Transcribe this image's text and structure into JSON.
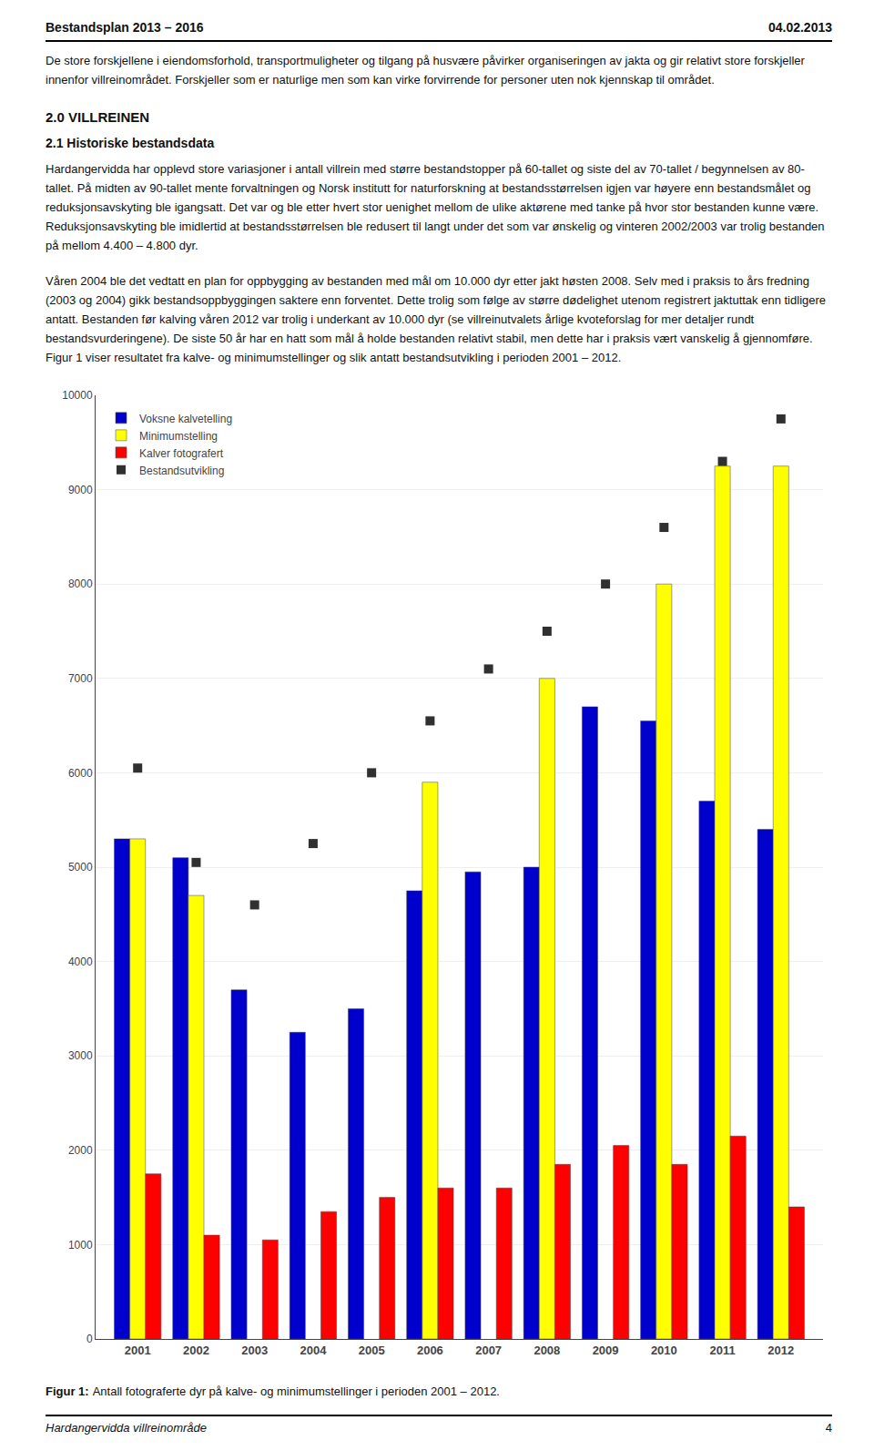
{
  "chart_data": {
    "type": "bar",
    "annotations": [
      "Bestandsplan 2013 – 2016",
      "04.02.2013",
      "De store forskjellene i eiendomsforhold, transportmuligheter og tilgang på husvære påvirker organiseringen av jakta og gir relativt store forskjeller innenfor villreinområdet. Forskjeller som er naturlige men som kan virke forvirrende for personer uten nok kjennskap til området.",
      "2.0 VILLREINEN",
      "2.1 Historiske bestandsdata",
      "Hardangervidda har opplevd store variasjoner i antall villrein med større bestandstopper på 60-tallet og siste del av 70-tallet / begynnelsen av 80-tallet. På midten av 90-tallet mente forvaltningen og Norsk institutt for naturforskning at bestandsstørrelsen igjen var høyere enn bestandsmålet og reduksjonsavskyting ble igangsatt. Det var og ble etter hvert stor uenighet mellom de ulike aktørene med tanke på hvor stor bestanden kunne være. Reduksjonsavskyting ble imidlertid at bestandsstørrelsen ble redusert til langt under det som var ønskelig og vinteren 2002/2003 var trolig bestanden på mellom 4.400 – 4.800 dyr.",
      "Våren 2004 ble det vedtatt en plan for oppbygging av bestanden med mål om 10.000 dyr etter jakt høsten 2008. Selv med i praksis to års fredning (2003 og 2004) gikk bestandsoppbyggingen saktere enn forventet. Dette trolig som følge av større dødelighet utenom registrert jaktuttak enn tidligere antatt. Bestanden før kalving våren 2012 var trolig i underkant av 10.000 dyr (se villreinutvalets årlige kvoteforslag for mer detaljer rundt bestandsvurderingene). De siste 50 år har en hatt som mål å holde bestanden relativt stabil, men dette har i praksis vært vanskelig å gjennomføre. Figur 1 viser resultatet fra kalve- og minimumstellinger og slik antatt bestandsutvikling i perioden 2001 – 2012.",
      "Figur 1:",
      "Antall fotograferte dyr på kalve- og minimumstellinger i perioden 2001 – 2012.",
      "Hardangervidda villreinområde",
      "4"
    ],
    "categories": [
      "2001",
      "2002",
      "2003",
      "2004",
      "2005",
      "2006",
      "2007",
      "2008",
      "2009",
      "2010",
      "2011",
      "2012"
    ],
    "series": [
      {
        "name": "Voksne kalvetelling",
        "color": "#0000CD",
        "values": [
          5300,
          5100,
          3700,
          3250,
          3500,
          4750,
          4950,
          5000,
          6700,
          6550,
          5700,
          5400
        ]
      },
      {
        "name": "Minimumstelling",
        "color": "#FFFF00",
        "values": [
          5300,
          4700,
          null,
          null,
          null,
          5900,
          null,
          7000,
          null,
          8000,
          9250,
          9250
        ]
      },
      {
        "name": "Kalver fotografert",
        "color": "#FF0000",
        "values": [
          1750,
          1100,
          1050,
          1350,
          1500,
          1600,
          1600,
          1850,
          2050,
          1850,
          2150,
          1400
        ]
      },
      {
        "name": "Bestandsutvikling",
        "color": "#303030",
        "type": "scatter",
        "marker": "square",
        "values": [
          6050,
          5050,
          4600,
          5250,
          6000,
          6550,
          7100,
          7500,
          8000,
          8600,
          9300,
          9750
        ]
      }
    ],
    "ylim": [
      0,
      10000
    ],
    "yticks": [
      0,
      1000,
      2000,
      3000,
      4000,
      5000,
      6000,
      7000,
      8000,
      9000,
      10000
    ],
    "grid": true,
    "legend": "upper left"
  }
}
